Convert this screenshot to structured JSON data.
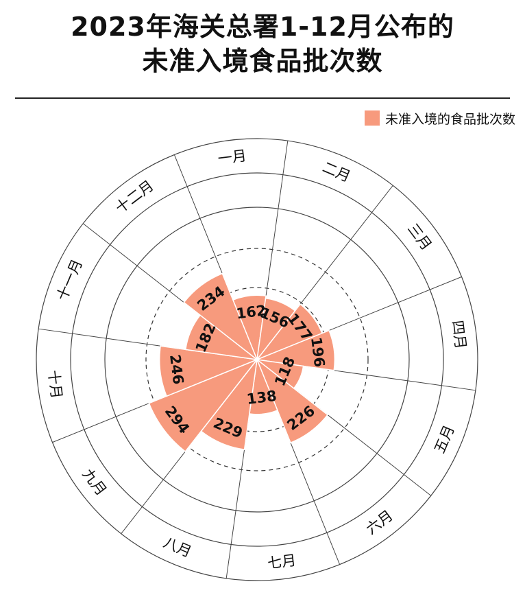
{
  "title": {
    "line1": "2023年海关总署1-12月公布的",
    "line2": "未准入境食品批次数"
  },
  "colors": {
    "bar": "#f79a7d",
    "ring": "#444444",
    "dashed": "#333333",
    "background": "#ffffff"
  },
  "chart_data": {
    "type": "polar-bar",
    "title": "2023年海关总署1-12月公布的未准入境食品批次数",
    "categories": [
      "一月",
      "二月",
      "三月",
      "四月",
      "五月",
      "六月",
      "七月",
      "八月",
      "九月",
      "十月",
      "十一月",
      "十二月"
    ],
    "series": [
      {
        "name": "未准入境的食品批次数",
        "values": [
          162,
          156,
          177,
          196,
          118,
          226,
          138,
          229,
          294,
          246,
          182,
          234
        ]
      }
    ],
    "legend_position": "top-right",
    "grid": "dashed concentric circles"
  }
}
